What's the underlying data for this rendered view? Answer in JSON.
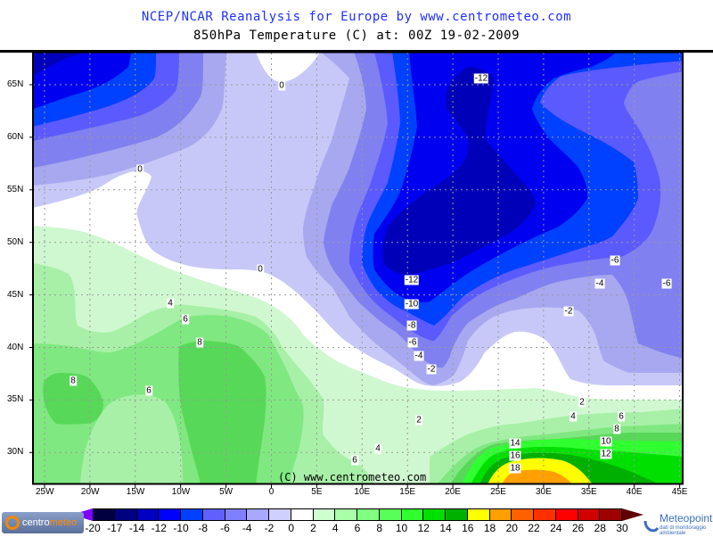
{
  "header": {
    "title": "NCEP/NCAR Reanalysis for Europe by www.centrometeo.com",
    "subtitle": "850hPa Temperature (C) at: 00Z 19-02-2009"
  },
  "map": {
    "variable": "850hPa Temperature",
    "units": "C",
    "lon_labels": [
      "25W",
      "20W",
      "15W",
      "10W",
      "5W",
      "0",
      "5E",
      "10E",
      "15E",
      "20E",
      "25E",
      "30E",
      "35E",
      "40E",
      "45E"
    ],
    "lat_labels": [
      "65N",
      "60N",
      "55N",
      "50N",
      "45N",
      "40N",
      "35N",
      "30N"
    ],
    "contour_labels": [
      "-12",
      "0",
      "0",
      "0",
      "-6",
      "-4",
      "-6",
      "-12",
      "-10",
      "-2",
      "-8",
      "-6",
      "-4",
      "-2",
      "4",
      "6",
      "8",
      "8",
      "6",
      "2",
      "4",
      "2",
      "6",
      "8",
      "10",
      "12",
      "14",
      "16",
      "18",
      "4",
      "6"
    ],
    "copyright": "(C) www.centrometeo.com"
  },
  "colorbar": {
    "labels": [
      "-20",
      "-17",
      "-14",
      "-12",
      "-10",
      "-8",
      "-6",
      "-4",
      "-2",
      "0",
      "2",
      "4",
      "6",
      "8",
      "10",
      "12",
      "14",
      "16",
      "18",
      "20",
      "22",
      "24",
      "26",
      "28",
      "30"
    ],
    "colors": [
      "#000040",
      "#000080",
      "#0000c0",
      "#0000ff",
      "#0040ff",
      "#6060ff",
      "#8080ff",
      "#a8a8ff",
      "#d0d0ff",
      "#ffffff",
      "#d0ffd0",
      "#a8ffa8",
      "#80ff80",
      "#58ff58",
      "#30ff30",
      "#00e000",
      "#00b000",
      "#ffff00",
      "#ffa000",
      "#ff6000",
      "#ff3000",
      "#ff0000",
      "#d00000",
      "#a00000"
    ],
    "under_color": "#8000ff",
    "over_color": "#600000"
  },
  "logos": {
    "left": {
      "part1": "centro",
      "part2": "meteo"
    },
    "right": {
      "name": "Meteopoint",
      "tagline": "dati di monitoraggio ambientale"
    }
  }
}
